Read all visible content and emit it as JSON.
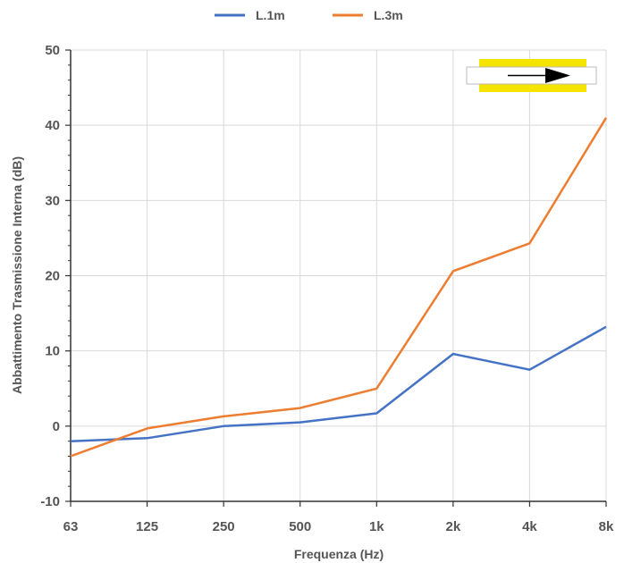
{
  "chart_data": {
    "type": "line",
    "categories": [
      "63",
      "125",
      "250",
      "500",
      "1k",
      "2k",
      "4k",
      "8k"
    ],
    "series": [
      {
        "name": "L.1m",
        "color": "#4472C4",
        "values": [
          -2.0,
          -1.6,
          0.0,
          0.5,
          1.7,
          9.6,
          7.5,
          13.2
        ]
      },
      {
        "name": "L.3m",
        "color": "#ED7D31",
        "values": [
          -4.0,
          -0.3,
          1.3,
          2.4,
          5.0,
          20.6,
          24.3,
          41.0
        ]
      }
    ],
    "xlabel": "Frequenza (Hz)",
    "ylabel": "Abbattimento Trasmissione Interna (dB)",
    "ylim": [
      -10,
      50
    ],
    "yticks": [
      -10,
      0,
      10,
      20,
      30,
      40,
      50
    ],
    "grid": true,
    "legend_position": "top-center",
    "inset_icon": "duct-airflow-arrow-icon",
    "inset_colors": {
      "band": "#F5E400",
      "arrow": "#000000"
    }
  }
}
